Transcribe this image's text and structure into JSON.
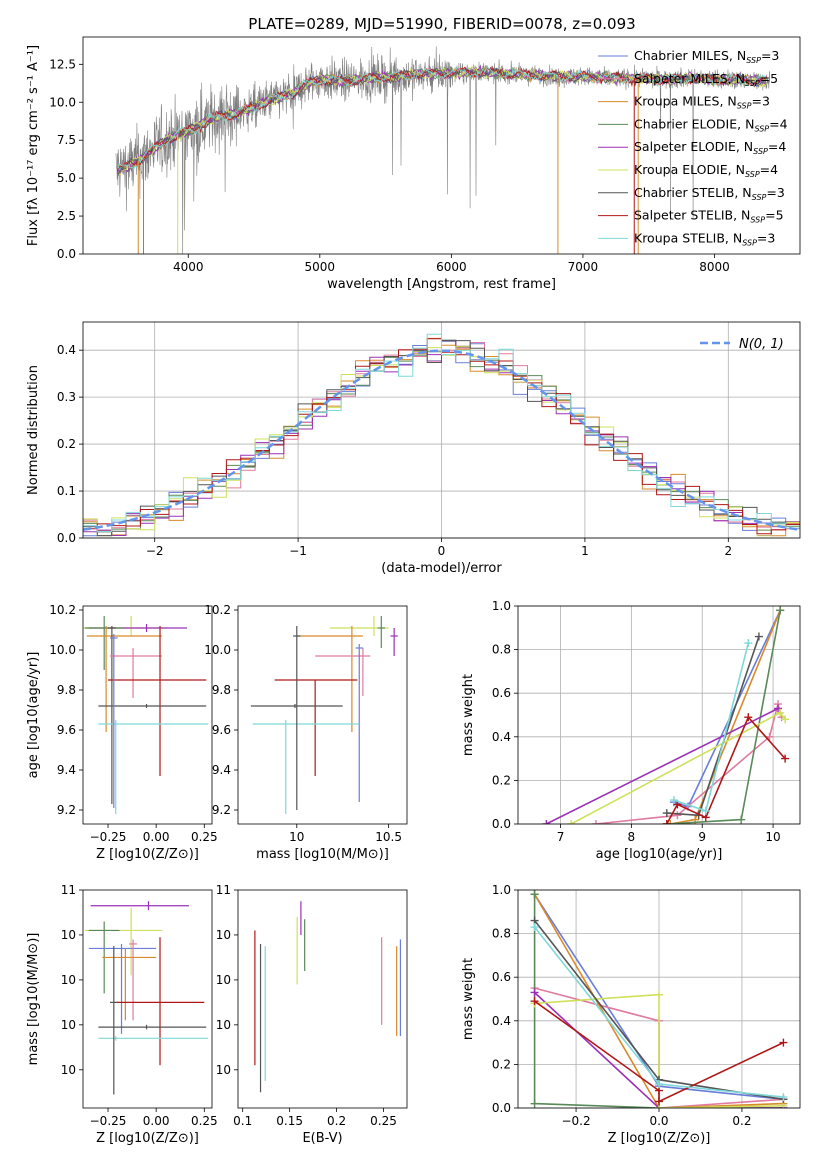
{
  "figure": {
    "title": "PLATE=0289, MJD=51990, FIBERID=0078, z=0.093"
  },
  "colors": {
    "Chabrier MILES": "#6a7ddb",
    "Salpeter MILES": "#e07aa0",
    "Kroupa MILES": "#d98a2b",
    "Chabrier ELODIE": "#5a8a5a",
    "Salpeter ELODIE": "#9b30b8",
    "Kroupa ELODIE": "#cfe05a",
    "Chabrier STELIB": "#555555",
    "Salpeter STELIB": "#b01818",
    "Kroupa STELIB": "#7fd8d8"
  },
  "chart_data": [
    {
      "id": "spectrum",
      "type": "line",
      "xlabel": "wavelength [Angstrom, rest frame]",
      "ylabel": "Flux [fλ 10⁻¹⁷ erg cm⁻² s⁻¹ A⁻¹]",
      "xlim": [
        3200,
        8650
      ],
      "ylim": [
        0,
        14.3
      ],
      "xticks": [
        4000,
        5000,
        6000,
        7000,
        8000
      ],
      "yticks": [
        0.0,
        2.5,
        5.0,
        7.5,
        10.0,
        12.5
      ],
      "legend": [
        {
          "name": "Chabrier MILES",
          "nssp": "3"
        },
        {
          "name": "Salpeter MILES",
          "nssp": "5"
        },
        {
          "name": "Kroupa MILES",
          "nssp": "3"
        },
        {
          "name": "Chabrier ELODIE",
          "nssp": "4"
        },
        {
          "name": "Salpeter ELODIE",
          "nssp": "4"
        },
        {
          "name": "Kroupa ELODIE",
          "nssp": "4"
        },
        {
          "name": "Chabrier STELIB",
          "nssp": "3"
        },
        {
          "name": "Salpeter STELIB",
          "nssp": "5"
        },
        {
          "name": "Kroupa STELIB",
          "nssp": "3"
        }
      ],
      "legend_loc": "right",
      "data_color": "#808080",
      "continuum": [
        [
          3450,
          5.5
        ],
        [
          3550,
          5.8
        ],
        [
          3650,
          6.3
        ],
        [
          3750,
          7.0
        ],
        [
          3850,
          7.6
        ],
        [
          3950,
          8.0
        ],
        [
          4050,
          8.3
        ],
        [
          4150,
          8.8
        ],
        [
          4250,
          9.1
        ],
        [
          4350,
          9.2
        ],
        [
          4500,
          9.7
        ],
        [
          4650,
          10.2
        ],
        [
          4800,
          10.6
        ],
        [
          4900,
          11.2
        ],
        [
          5000,
          11.5
        ],
        [
          5200,
          11.4
        ],
        [
          5400,
          11.6
        ],
        [
          5600,
          11.7
        ],
        [
          5800,
          11.9
        ],
        [
          6000,
          11.9
        ],
        [
          6200,
          12.0
        ],
        [
          6400,
          11.9
        ],
        [
          6600,
          11.8
        ],
        [
          6800,
          11.7
        ],
        [
          7000,
          11.7
        ],
        [
          7200,
          11.6
        ],
        [
          7400,
          11.6
        ],
        [
          7600,
          11.5
        ],
        [
          7800,
          11.6
        ],
        [
          8000,
          11.5
        ],
        [
          8200,
          11.5
        ],
        [
          8400,
          11.4
        ]
      ]
    },
    {
      "id": "residuals",
      "type": "step",
      "xlabel": "(data-model)/error",
      "ylabel": "Normed distribution",
      "xlim": [
        -2.5,
        2.5
      ],
      "ylim": [
        0,
        0.46
      ],
      "xticks": [
        -2,
        -1,
        0,
        1,
        2
      ],
      "yticks": [
        0.0,
        0.1,
        0.2,
        0.3,
        0.4
      ],
      "gaussian_label": "N(0, 1)",
      "grid": true
    },
    {
      "id": "age-vs-Z",
      "type": "errorbar",
      "xlabel": "Z [log10(Z/Z⊙)]",
      "ylabel": "age  [log10(age/yr)]",
      "xlim": [
        -0.38,
        0.29
      ],
      "ylim": [
        9.13,
        10.22
      ],
      "xticks": [
        -0.25,
        0.0,
        0.25
      ],
      "yticks": [
        9.2,
        9.4,
        9.6,
        9.8,
        10.0,
        10.2
      ],
      "points": [
        {
          "model": "Kroupa ELODIE",
          "x": -0.13,
          "y": 10.11,
          "xerr": [
            0.41,
            0.19
          ],
          "yerr": [
            0.04,
            0.06
          ]
        },
        {
          "model": "Salpeter ELODIE",
          "x": -0.05,
          "y": 10.11,
          "xerr": [
            0.3,
            0.21
          ],
          "yerr": [
            0.02,
            0.02
          ]
        },
        {
          "model": "Chabrier ELODIE",
          "x": -0.27,
          "y": 10.11,
          "xerr": [
            0.1,
            0.1
          ],
          "yerr": [
            0.21,
            0.06
          ]
        },
        {
          "model": "Kroupa MILES",
          "x": -0.26,
          "y": 10.07,
          "xerr": [
            0.1,
            0.29
          ],
          "yerr": [
            0.48,
            0.05
          ]
        },
        {
          "model": "Chabrier STELIB",
          "x": -0.23,
          "y": 10.11,
          "xerr": [
            0.02,
            0.02
          ],
          "yerr": [
            0.88,
            0.01
          ]
        },
        {
          "model": "Salpeter MILES",
          "x": -0.12,
          "y": 9.97,
          "xerr": [
            0.12,
            0.15
          ],
          "yerr": [
            0.21,
            0.04
          ]
        },
        {
          "model": "Salpeter STELIB",
          "x": 0.02,
          "y": 9.85,
          "xerr": [
            0.27,
            0.24
          ],
          "yerr": [
            0.48,
            0.27
          ]
        },
        {
          "model": "Chabrier STELIB",
          "x": -0.05,
          "y": 9.72,
          "xerr": [
            0.25,
            0.31
          ],
          "yerr": [
            0.01,
            0.01
          ]
        },
        {
          "model": "Kroupa STELIB",
          "x": -0.21,
          "y": 9.63,
          "xerr": [
            0.09,
            0.48
          ],
          "yerr": [
            0.45,
            0.02
          ]
        },
        {
          "model": "Chabrier MILES",
          "x": -0.22,
          "y": 10.06,
          "xerr": [
            0.02,
            0.02
          ],
          "yerr": [
            0.85,
            0.02
          ]
        }
      ]
    },
    {
      "id": "age-vs-mass",
      "type": "errorbar",
      "xlabel": "mass [log10(M/M⊙)]",
      "ylabel": "",
      "xlim": [
        9.68,
        10.6
      ],
      "ylim": [
        9.13,
        10.22
      ],
      "xticks": [
        10.0,
        10.5
      ],
      "yticks": [
        9.2,
        9.4,
        9.6,
        9.8,
        10.0,
        10.2
      ],
      "points": [
        {
          "model": "Kroupa ELODIE",
          "x": 10.42,
          "y": 10.11,
          "xerr": [
            0.24,
            0.08
          ],
          "yerr": [
            0.04,
            0.06
          ]
        },
        {
          "model": "Salpeter ELODIE",
          "x": 10.53,
          "y": 10.07,
          "xerr": [
            0.02,
            0.02
          ],
          "yerr": [
            0.1,
            0.04
          ]
        },
        {
          "model": "Chabrier ELODIE",
          "x": 10.46,
          "y": 10.11,
          "xerr": [
            0.02,
            0.02
          ],
          "yerr": [
            0.1,
            0.06
          ]
        },
        {
          "model": "Kroupa MILES",
          "x": 10.3,
          "y": 10.07,
          "xerr": [
            0.3,
            0.06
          ],
          "yerr": [
            0.48,
            0.05
          ]
        },
        {
          "model": "Salpeter MILES",
          "x": 10.36,
          "y": 9.97,
          "xerr": [
            0.26,
            0.04
          ],
          "yerr": [
            0.2,
            0.04
          ]
        },
        {
          "model": "Chabrier MILES",
          "x": 10.34,
          "y": 10.01,
          "xerr": [
            0.02,
            0.02
          ],
          "yerr": [
            0.77,
            0.02
          ]
        },
        {
          "model": "Salpeter STELIB",
          "x": 10.1,
          "y": 9.85,
          "xerr": [
            0.22,
            0.23
          ],
          "yerr": [
            0.48,
            0.0
          ]
        },
        {
          "model": "Chabrier STELIB",
          "x": 9.99,
          "y": 9.72,
          "xerr": [
            0.24,
            0.26
          ],
          "yerr": [
            0.01,
            0.01
          ]
        },
        {
          "model": "Kroupa STELIB",
          "x": 9.94,
          "y": 9.63,
          "xerr": [
            0.18,
            0.4
          ],
          "yerr": [
            0.45,
            0.02
          ]
        },
        {
          "model": "Chabrier STELIB",
          "x": 10.0,
          "y": 10.07,
          "xerr": [
            0.02,
            0.02
          ],
          "yerr": [
            0.87,
            0.05
          ]
        }
      ]
    },
    {
      "id": "weight-vs-age",
      "type": "line",
      "xlabel": "age  [log10(age/yr)]",
      "ylabel": "mass weight",
      "xlim": [
        6.4,
        10.38
      ],
      "ylim": [
        0,
        1.0
      ],
      "xticks": [
        7,
        8,
        9,
        10
      ],
      "yticks": [
        0.0,
        0.2,
        0.4,
        0.6,
        0.8,
        1.0
      ],
      "grid": true,
      "series": [
        {
          "model": "Chabrier MILES",
          "x": [
            8.6,
            8.8,
            10.1
          ],
          "y": [
            0.1,
            0.08,
            0.98
          ]
        },
        {
          "model": "Salpeter MILES",
          "x": [
            7.5,
            8.65,
            9.95,
            10.07,
            10.12
          ],
          "y": [
            0.0,
            0.04,
            0.4,
            0.55,
            0.49
          ]
        },
        {
          "model": "Kroupa MILES",
          "x": [
            8.55,
            8.9,
            10.1
          ],
          "y": [
            0.0,
            0.02,
            0.98
          ]
        },
        {
          "model": "Chabrier ELODIE",
          "x": [
            8.5,
            9.55,
            10.1
          ],
          "y": [
            0.0,
            0.02,
            0.98
          ]
        },
        {
          "model": "Salpeter ELODIE",
          "x": [
            6.8,
            10.07
          ],
          "y": [
            0.0,
            0.53
          ]
        },
        {
          "model": "Kroupa ELODIE",
          "x": [
            7.15,
            10.1,
            10.17
          ],
          "y": [
            0.0,
            0.51,
            0.48
          ]
        },
        {
          "model": "Chabrier STELIB",
          "x": [
            8.5,
            8.95,
            9.8
          ],
          "y": [
            0.05,
            0.04,
            0.86
          ]
        },
        {
          "model": "Salpeter STELIB",
          "x": [
            8.5,
            8.65,
            9.05,
            9.65,
            10.17
          ],
          "y": [
            0.0,
            0.09,
            0.03,
            0.49,
            0.3
          ]
        },
        {
          "model": "Kroupa STELIB",
          "x": [
            8.6,
            9.05,
            9.65
          ],
          "y": [
            0.11,
            0.06,
            0.83
          ]
        }
      ]
    },
    {
      "id": "mass-vs-Z",
      "type": "errorbar",
      "xlabel": "Z [log10(Z/Z⊙)]",
      "ylabel": "mass [log10(M/M⊙)]",
      "xlim": [
        -0.38,
        0.29
      ],
      "ylim": [
        9.63,
        10.6
      ],
      "xticks": [
        -0.25,
        0.0,
        0.25
      ],
      "yticks": [
        9.8,
        10.0,
        10.2,
        10.4,
        10.6
      ],
      "points": [
        {
          "model": "Salpeter ELODIE",
          "x": -0.04,
          "y": 10.53,
          "xerr": [
            0.3,
            0.21
          ],
          "yerr": [
            0.02,
            0.02
          ]
        },
        {
          "model": "Kroupa ELODIE",
          "x": -0.13,
          "y": 10.42,
          "xerr": [
            0.24,
            0.16
          ],
          "yerr": [
            0.2,
            0.1
          ]
        },
        {
          "model": "Chabrier ELODIE",
          "x": -0.27,
          "y": 10.42,
          "xerr": [
            0.08,
            0.08
          ],
          "yerr": [
            0.28,
            0.04
          ]
        },
        {
          "model": "Chabrier MILES",
          "x": -0.18,
          "y": 10.34,
          "xerr": [
            0.17,
            0.18
          ],
          "yerr": [
            0.38,
            0.02
          ]
        },
        {
          "model": "Kroupa MILES",
          "x": -0.16,
          "y": 10.3,
          "xerr": [
            0.12,
            0.16
          ],
          "yerr": [
            0.28,
            0.04
          ]
        },
        {
          "model": "Salpeter MILES",
          "x": -0.12,
          "y": 10.36,
          "xerr": [
            0.02,
            0.02
          ],
          "yerr": [
            0.34,
            0.02
          ]
        },
        {
          "model": "Salpeter STELIB",
          "x": 0.02,
          "y": 10.1,
          "xerr": [
            0.23,
            0.23
          ],
          "yerr": [
            0.28,
            0.29
          ]
        },
        {
          "model": "Chabrier STELIB",
          "x": -0.05,
          "y": 9.99,
          "xerr": [
            0.25,
            0.31
          ],
          "yerr": [
            0.01,
            0.01
          ]
        },
        {
          "model": "Kroupa STELIB",
          "x": -0.21,
          "y": 9.94,
          "xerr": [
            0.09,
            0.48
          ],
          "yerr": [
            0.01,
            0.01
          ]
        },
        {
          "model": "Chabrier STELIB",
          "x": -0.22,
          "y": 10.1,
          "xerr": [
            0.02,
            0.02
          ],
          "yerr": [
            0.41,
            0.25
          ]
        }
      ]
    },
    {
      "id": "mass-vs-ebv",
      "type": "errorbar",
      "xlabel": "E(B-V)",
      "ylabel": "",
      "xlim": [
        0.095,
        0.275
      ],
      "ylim": [
        9.63,
        10.6
      ],
      "xticks": [
        0.1,
        0.15,
        0.2,
        0.25
      ],
      "yticks": [
        9.8,
        10.0,
        10.2,
        10.4,
        10.6
      ],
      "points": [
        {
          "model": "Salpeter STELIB",
          "x": 0.113,
          "y": 10.1,
          "xerr": [
            0,
            0
          ],
          "yerr": [
            0.28,
            0.32
          ]
        },
        {
          "model": "Chabrier STELIB",
          "x": 0.119,
          "y": 10.0,
          "xerr": [
            0,
            0
          ],
          "yerr": [
            0.3,
            0.36
          ]
        },
        {
          "model": "Kroupa STELIB",
          "x": 0.124,
          "y": 10.05,
          "xerr": [
            0,
            0
          ],
          "yerr": [
            0.3,
            0.3
          ]
        },
        {
          "model": "Kroupa ELODIE",
          "x": 0.158,
          "y": 10.33,
          "xerr": [
            0,
            0
          ],
          "yerr": [
            0.15,
            0.15
          ]
        },
        {
          "model": "Salpeter ELODIE",
          "x": 0.162,
          "y": 10.48,
          "xerr": [
            0,
            0
          ],
          "yerr": [
            0.08,
            0.07
          ]
        },
        {
          "model": "Chabrier ELODIE",
          "x": 0.166,
          "y": 10.36,
          "xerr": [
            0,
            0
          ],
          "yerr": [
            0.12,
            0.11
          ]
        },
        {
          "model": "Salpeter MILES",
          "x": 0.248,
          "y": 10.24,
          "xerr": [
            0,
            0
          ],
          "yerr": [
            0.24,
            0.15
          ]
        },
        {
          "model": "Kroupa MILES",
          "x": 0.264,
          "y": 10.15,
          "xerr": [
            0,
            0
          ],
          "yerr": [
            0.2,
            0.2
          ]
        },
        {
          "model": "Chabrier MILES",
          "x": 0.268,
          "y": 10.17,
          "xerr": [
            0,
            0
          ],
          "yerr": [
            0.22,
            0.21
          ]
        }
      ]
    },
    {
      "id": "weight-vs-Z",
      "type": "line",
      "xlabel": "Z [log10(Z/Z⊙)]",
      "ylabel": "mass weight",
      "xlim": [
        -0.34,
        0.34
      ],
      "ylim": [
        0,
        1.0
      ],
      "xticks": [
        -0.2,
        0.0,
        0.2
      ],
      "yticks": [
        0.0,
        0.2,
        0.4,
        0.6,
        0.8,
        1.0
      ],
      "grid": true,
      "series": [
        {
          "model": "Chabrier MILES",
          "x": [
            -0.3,
            0.0,
            0.3
          ],
          "y": [
            0.98,
            0.1,
            0.04
          ]
        },
        {
          "model": "Salpeter MILES",
          "x": [
            -0.3,
            0.0,
            0.0,
            0.3
          ],
          "y": [
            0.55,
            0.4,
            0.0,
            0.04
          ]
        },
        {
          "model": "Kroupa MILES",
          "x": [
            -0.3,
            0.0,
            0.3
          ],
          "y": [
            0.98,
            0.0,
            0.02
          ]
        },
        {
          "model": "Chabrier ELODIE",
          "x": [
            -0.3,
            -0.3,
            0.0,
            0.3
          ],
          "y": [
            0.98,
            0.02,
            0.0,
            0.0
          ]
        },
        {
          "model": "Salpeter ELODIE",
          "x": [
            -0.3,
            0.0,
            0.3
          ],
          "y": [
            0.53,
            0.0,
            0.0
          ]
        },
        {
          "model": "Kroupa ELODIE",
          "x": [
            -0.3,
            0.0,
            0.0,
            0.3
          ],
          "y": [
            0.48,
            0.52,
            0.0,
            0.01
          ]
        },
        {
          "model": "Chabrier STELIB",
          "x": [
            -0.3,
            0.0,
            0.3
          ],
          "y": [
            0.86,
            0.13,
            0.04
          ]
        },
        {
          "model": "Salpeter STELIB",
          "x": [
            -0.3,
            0.0,
            0.0,
            0.3
          ],
          "y": [
            0.49,
            0.08,
            0.03,
            0.3
          ]
        },
        {
          "model": "Kroupa STELIB",
          "x": [
            -0.3,
            0.0,
            0.3
          ],
          "y": [
            0.83,
            0.11,
            0.05
          ]
        }
      ]
    }
  ]
}
